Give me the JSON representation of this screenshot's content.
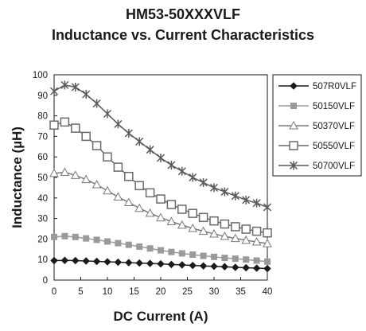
{
  "chart_data": {
    "type": "line",
    "title": "HM53-50XXXVLF",
    "subtitle": "Inductance vs. Current Characteristics",
    "xlabel": "DC Current (A)",
    "ylabel": "Inductance (µH)",
    "xlim": [
      0,
      40
    ],
    "ylim": [
      0,
      100
    ],
    "xticks": [
      0,
      5,
      10,
      15,
      20,
      25,
      30,
      35,
      40
    ],
    "yticks": [
      0,
      10,
      20,
      30,
      40,
      50,
      60,
      70,
      80,
      90,
      100
    ],
    "grid": false,
    "legend_position": "right",
    "x": [
      0,
      2,
      4,
      6,
      8,
      10,
      12,
      14,
      16,
      18,
      20,
      22,
      24,
      26,
      28,
      30,
      32,
      34,
      36,
      38,
      40
    ],
    "series": [
      {
        "name": "507R0VLF",
        "color": "#1a1a1a",
        "marker": "diamond",
        "values": [
          9.5,
          9.6,
          9.5,
          9.3,
          9.1,
          8.9,
          8.7,
          8.5,
          8.3,
          8.1,
          7.9,
          7.6,
          7.4,
          7.1,
          6.9,
          6.7,
          6.5,
          6.2,
          6.0,
          5.8,
          5.6
        ]
      },
      {
        "name": "50150VLF",
        "color": "#9a9a9a",
        "marker": "square-filled",
        "values": [
          21.0,
          21.4,
          21.0,
          20.3,
          19.6,
          18.8,
          18.0,
          17.2,
          16.3,
          15.4,
          14.5,
          13.7,
          13.0,
          12.4,
          11.8,
          11.3,
          10.8,
          10.4,
          10.0,
          9.5,
          9.0
        ]
      },
      {
        "name": "50370VLF",
        "color": "#7a7a7a",
        "marker": "triangle",
        "values": [
          52.0,
          52.5,
          51.0,
          49.0,
          46.5,
          43.5,
          40.5,
          37.8,
          35.0,
          32.6,
          30.4,
          28.5,
          26.8,
          25.2,
          23.8,
          22.5,
          21.3,
          20.3,
          19.4,
          18.6,
          17.8
        ]
      },
      {
        "name": "50550VLF",
        "color": "#6a6a6a",
        "marker": "square-open",
        "values": [
          75.5,
          77.0,
          74.0,
          70.0,
          65.5,
          60.0,
          55.0,
          50.5,
          46.0,
          42.5,
          39.5,
          36.8,
          34.5,
          32.5,
          30.5,
          28.8,
          27.3,
          26.0,
          24.8,
          23.8,
          23.0
        ]
      },
      {
        "name": "50700VLF",
        "color": "#5a5a5a",
        "marker": "star",
        "values": [
          92.0,
          95.0,
          94.0,
          90.5,
          86.0,
          81.0,
          76.0,
          71.5,
          67.5,
          63.5,
          59.5,
          56.0,
          53.0,
          50.0,
          47.5,
          45.0,
          43.0,
          41.0,
          39.0,
          37.5,
          35.5
        ]
      }
    ]
  }
}
